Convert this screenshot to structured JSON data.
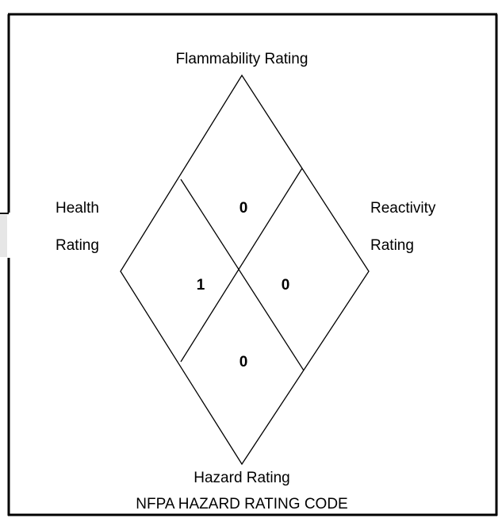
{
  "labels": {
    "flammability": "Flammability Rating",
    "health": [
      "Health",
      "Rating"
    ],
    "reactivity": [
      "Reactivity",
      "Rating"
    ],
    "hazard": "Hazard Rating"
  },
  "ratings": {
    "flammability": "0",
    "health": "1",
    "reactivity": "0",
    "hazard": "0"
  },
  "caption": "NFPA HAZARD RATING CODE"
}
